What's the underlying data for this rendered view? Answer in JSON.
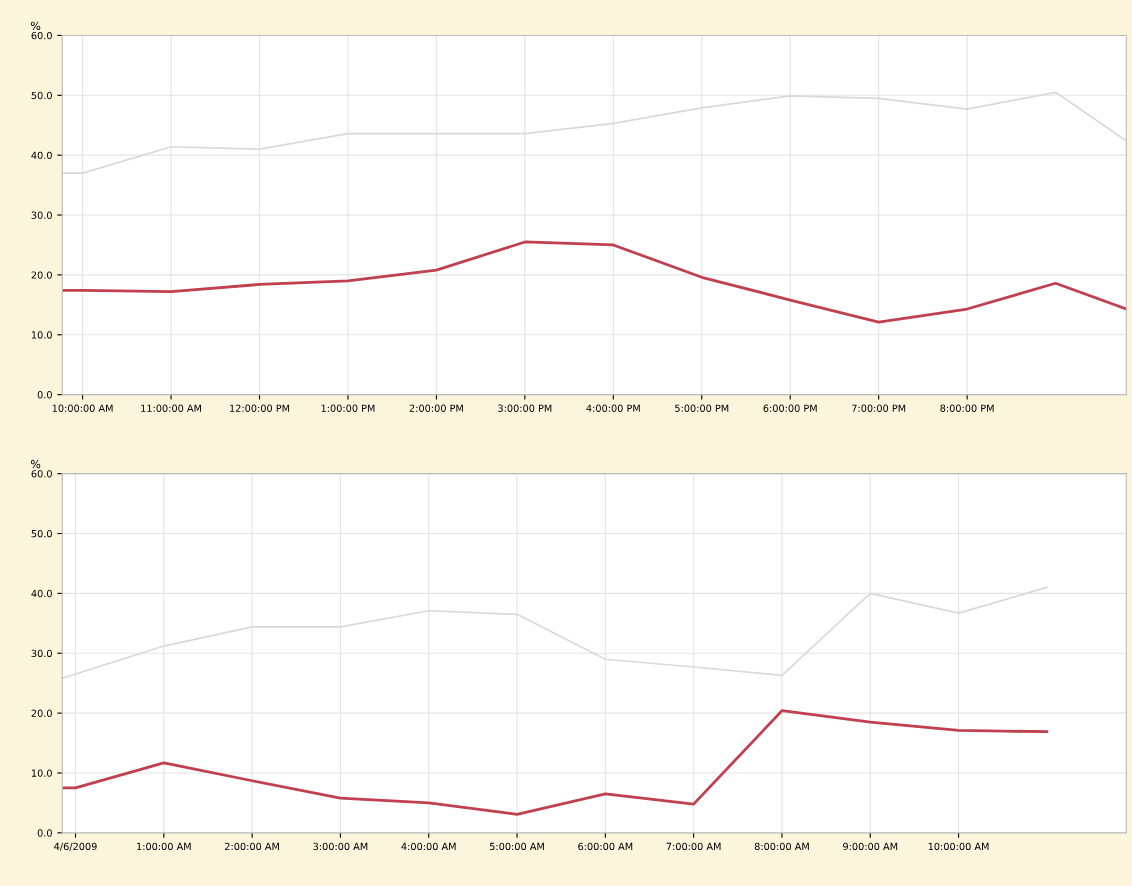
{
  "chart_data": [
    {
      "type": "line",
      "ylabel": "%",
      "grid": true,
      "xlim": [
        9.77,
        21.8
      ],
      "ylim": [
        0,
        60
      ],
      "yticks": [
        {
          "value": 0,
          "label": "0.0"
        },
        {
          "value": 10,
          "label": "10.0"
        },
        {
          "value": 20,
          "label": "20.0"
        },
        {
          "value": 30,
          "label": "30.0"
        },
        {
          "value": 40,
          "label": "40.0"
        },
        {
          "value": 50,
          "label": "50.0"
        },
        {
          "value": 60,
          "label": "60.0"
        }
      ],
      "xticks": [
        {
          "value": 10,
          "label": "10:00:00 AM"
        },
        {
          "value": 11,
          "label": "11:00:00 AM"
        },
        {
          "value": 12,
          "label": "12:00:00 PM"
        },
        {
          "value": 13,
          "label": "1:00:00 PM"
        },
        {
          "value": 14,
          "label": "2:00:00 PM"
        },
        {
          "value": 15,
          "label": "3:00:00 PM"
        },
        {
          "value": 16,
          "label": "4:00:00 PM"
        },
        {
          "value": 17,
          "label": "5:00:00 PM"
        },
        {
          "value": 18,
          "label": "6:00:00 PM"
        },
        {
          "value": 19,
          "label": "7:00:00 PM"
        },
        {
          "value": 20,
          "label": "8:00:00 PM"
        }
      ],
      "series": [
        {
          "color": "#d9d9d9",
          "x": [
            9.77,
            10,
            11,
            12,
            13,
            14,
            15,
            16,
            17,
            18,
            19,
            20,
            21,
            21.8
          ],
          "values": [
            37.0,
            37.0,
            41.4,
            41.0,
            43.6,
            43.6,
            43.6,
            45.3,
            47.9,
            49.9,
            49.5,
            47.7,
            50.5,
            42.4
          ]
        },
        {
          "color": "#c0404f",
          "x": [
            9.77,
            10,
            11,
            12,
            13,
            14,
            15,
            16,
            17,
            18,
            19,
            20,
            21,
            21.8
          ],
          "values": [
            17.4,
            17.4,
            17.2,
            18.4,
            19.0,
            20.8,
            25.5,
            25.0,
            19.6,
            15.8,
            12.1,
            14.3,
            18.6,
            14.3
          ]
        }
      ]
    },
    {
      "type": "line",
      "ylabel": "%",
      "grid": true,
      "xlim": [
        -0.15,
        11.9
      ],
      "ylim": [
        0,
        60
      ],
      "yticks": [
        {
          "value": 0,
          "label": "0.0"
        },
        {
          "value": 10,
          "label": "10.0"
        },
        {
          "value": 20,
          "label": "20.0"
        },
        {
          "value": 30,
          "label": "30.0"
        },
        {
          "value": 40,
          "label": "40.0"
        },
        {
          "value": 50,
          "label": "50.0"
        },
        {
          "value": 60,
          "label": "60.0"
        }
      ],
      "xticks": [
        {
          "value": 0,
          "label": "4/6/2009"
        },
        {
          "value": 1,
          "label": "1:00:00 AM"
        },
        {
          "value": 2,
          "label": "2:00:00 AM"
        },
        {
          "value": 3,
          "label": "3:00:00 AM"
        },
        {
          "value": 4,
          "label": "4:00:00 AM"
        },
        {
          "value": 5,
          "label": "5:00:00 AM"
        },
        {
          "value": 6,
          "label": "6:00:00 AM"
        },
        {
          "value": 7,
          "label": "7:00:00 AM"
        },
        {
          "value": 8,
          "label": "8:00:00 AM"
        },
        {
          "value": 9,
          "label": "9:00:00 AM"
        },
        {
          "value": 10,
          "label": "10:00:00 AM"
        }
      ],
      "series": [
        {
          "color": "#d9d9d9",
          "x": [
            -0.15,
            1,
            2,
            3,
            4,
            5,
            6,
            7,
            8,
            9,
            10,
            11
          ],
          "values": [
            25.8,
            31.2,
            34.4,
            34.4,
            37.1,
            36.5,
            29.0,
            27.7,
            26.3,
            40.0,
            36.7,
            41.0
          ]
        },
        {
          "color": "#c0404f",
          "x": [
            -0.15,
            0,
            1,
            2,
            3,
            4,
            5,
            6,
            7,
            8,
            9,
            10,
            11
          ],
          "values": [
            7.5,
            7.5,
            11.7,
            8.7,
            5.8,
            5.0,
            3.1,
            6.5,
            4.8,
            20.4,
            18.5,
            17.1,
            16.9
          ]
        }
      ]
    }
  ]
}
